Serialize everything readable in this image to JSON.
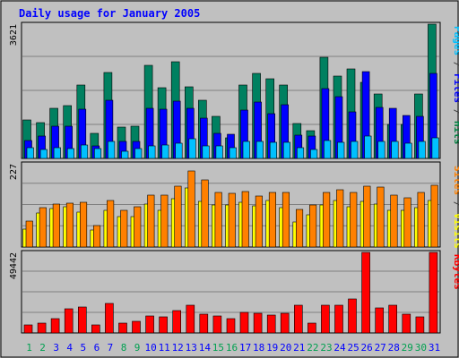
{
  "chart_data": [
    {
      "type": "bar",
      "title": "Daily usage for January 2005",
      "panel": "hits-files-pages",
      "y_tick_label": "3621",
      "right_labels": [
        {
          "text": "Pages",
          "color": "#00c0ff"
        },
        {
          "text": " / ",
          "color": "#404040"
        },
        {
          "text": "Files",
          "color": "#0000ff"
        },
        {
          "text": " / ",
          "color": "#404040"
        },
        {
          "text": "Hits",
          "color": "#008040"
        }
      ],
      "ylim": [
        0,
        3621
      ],
      "series": [
        {
          "name": "Hits",
          "color": "#008060",
          "values": [
            1050,
            960,
            1350,
            1420,
            1970,
            680,
            2320,
            850,
            860,
            2520,
            1900,
            2600,
            1920,
            1570,
            1130,
            550,
            1980,
            2300,
            2150,
            1980,
            940,
            760,
            2720,
            2230,
            2410,
            2040,
            1750,
            920,
            920,
            1730,
            3621
          ]
        },
        {
          "name": "Files",
          "color": "#0000ff",
          "values": [
            480,
            610,
            860,
            880,
            1330,
            350,
            1580,
            460,
            470,
            1350,
            1320,
            1550,
            1350,
            1080,
            680,
            660,
            1310,
            1510,
            1210,
            1460,
            620,
            610,
            1890,
            1670,
            1260,
            2330,
            1370,
            1360,
            1150,
            1140,
            2290
          ]
        },
        {
          "name": "Pages",
          "color": "#00c0ff",
          "values": [
            300,
            250,
            290,
            270,
            370,
            270,
            460,
            200,
            260,
            350,
            360,
            420,
            530,
            340,
            330,
            280,
            450,
            460,
            440,
            430,
            290,
            250,
            480,
            430,
            450,
            600,
            470,
            460,
            410,
            450,
            550
          ]
        }
      ]
    },
    {
      "type": "bar",
      "panel": "sites-visits",
      "y_tick_label": "227",
      "right_labels": [
        {
          "text": "Sites",
          "color": "#ff8000"
        },
        {
          "text": " / ",
          "color": "#404040"
        },
        {
          "text": "Visits",
          "color": "#ffff00"
        }
      ],
      "ylim": [
        0,
        227
      ],
      "series": [
        {
          "name": "Visits",
          "color": "#ffff00",
          "values": [
            48,
            93,
            105,
            109,
            96,
            47,
            99,
            84,
            84,
            116,
            101,
            132,
            161,
            125,
            115,
            115,
            123,
            112,
            128,
            107,
            69,
            88,
            115,
            126,
            109,
            125,
            117,
            100,
            99,
            108,
            126
          ]
        },
        {
          "name": "Sites",
          "color": "#ff8000",
          "values": [
            70,
            107,
            116,
            120,
            121,
            58,
            126,
            99,
            109,
            142,
            142,
            165,
            208,
            183,
            150,
            147,
            152,
            139,
            150,
            149,
            103,
            115,
            150,
            156,
            149,
            166,
            163,
            142,
            135,
            149,
            169
          ]
        }
      ]
    },
    {
      "type": "bar",
      "panel": "kbytes",
      "y_tick_label": "49442",
      "right_labels": [
        {
          "text": "KBytes",
          "color": "#ff0000"
        }
      ],
      "ylim": [
        0,
        49442
      ],
      "series": [
        {
          "name": "KBytes",
          "color": "#ff0000",
          "values": [
            5000,
            5800,
            8900,
            15000,
            16200,
            5200,
            18200,
            5900,
            6900,
            10300,
            9900,
            13700,
            17300,
            11600,
            10700,
            8800,
            12600,
            12300,
            10800,
            12100,
            16800,
            6100,
            17100,
            16800,
            21000,
            49442,
            15300,
            16900,
            11500,
            10000,
            49442
          ]
        }
      ]
    }
  ],
  "x_labels": [
    "1",
    "2",
    "3",
    "4",
    "5",
    "6",
    "7",
    "8",
    "9",
    "10",
    "11",
    "12",
    "13",
    "14",
    "15",
    "16",
    "17",
    "18",
    "19",
    "20",
    "21",
    "22",
    "23",
    "24",
    "25",
    "26",
    "27",
    "28",
    "29",
    "30",
    "31"
  ],
  "weekend_days": [
    1,
    2,
    8,
    9,
    15,
    16,
    22,
    23,
    29,
    30
  ],
  "colors": {
    "weekday_label": "#0000ff",
    "weekend_label": "#00a050",
    "title": "#0000ff",
    "panel_bg": "#c0c0c0"
  }
}
